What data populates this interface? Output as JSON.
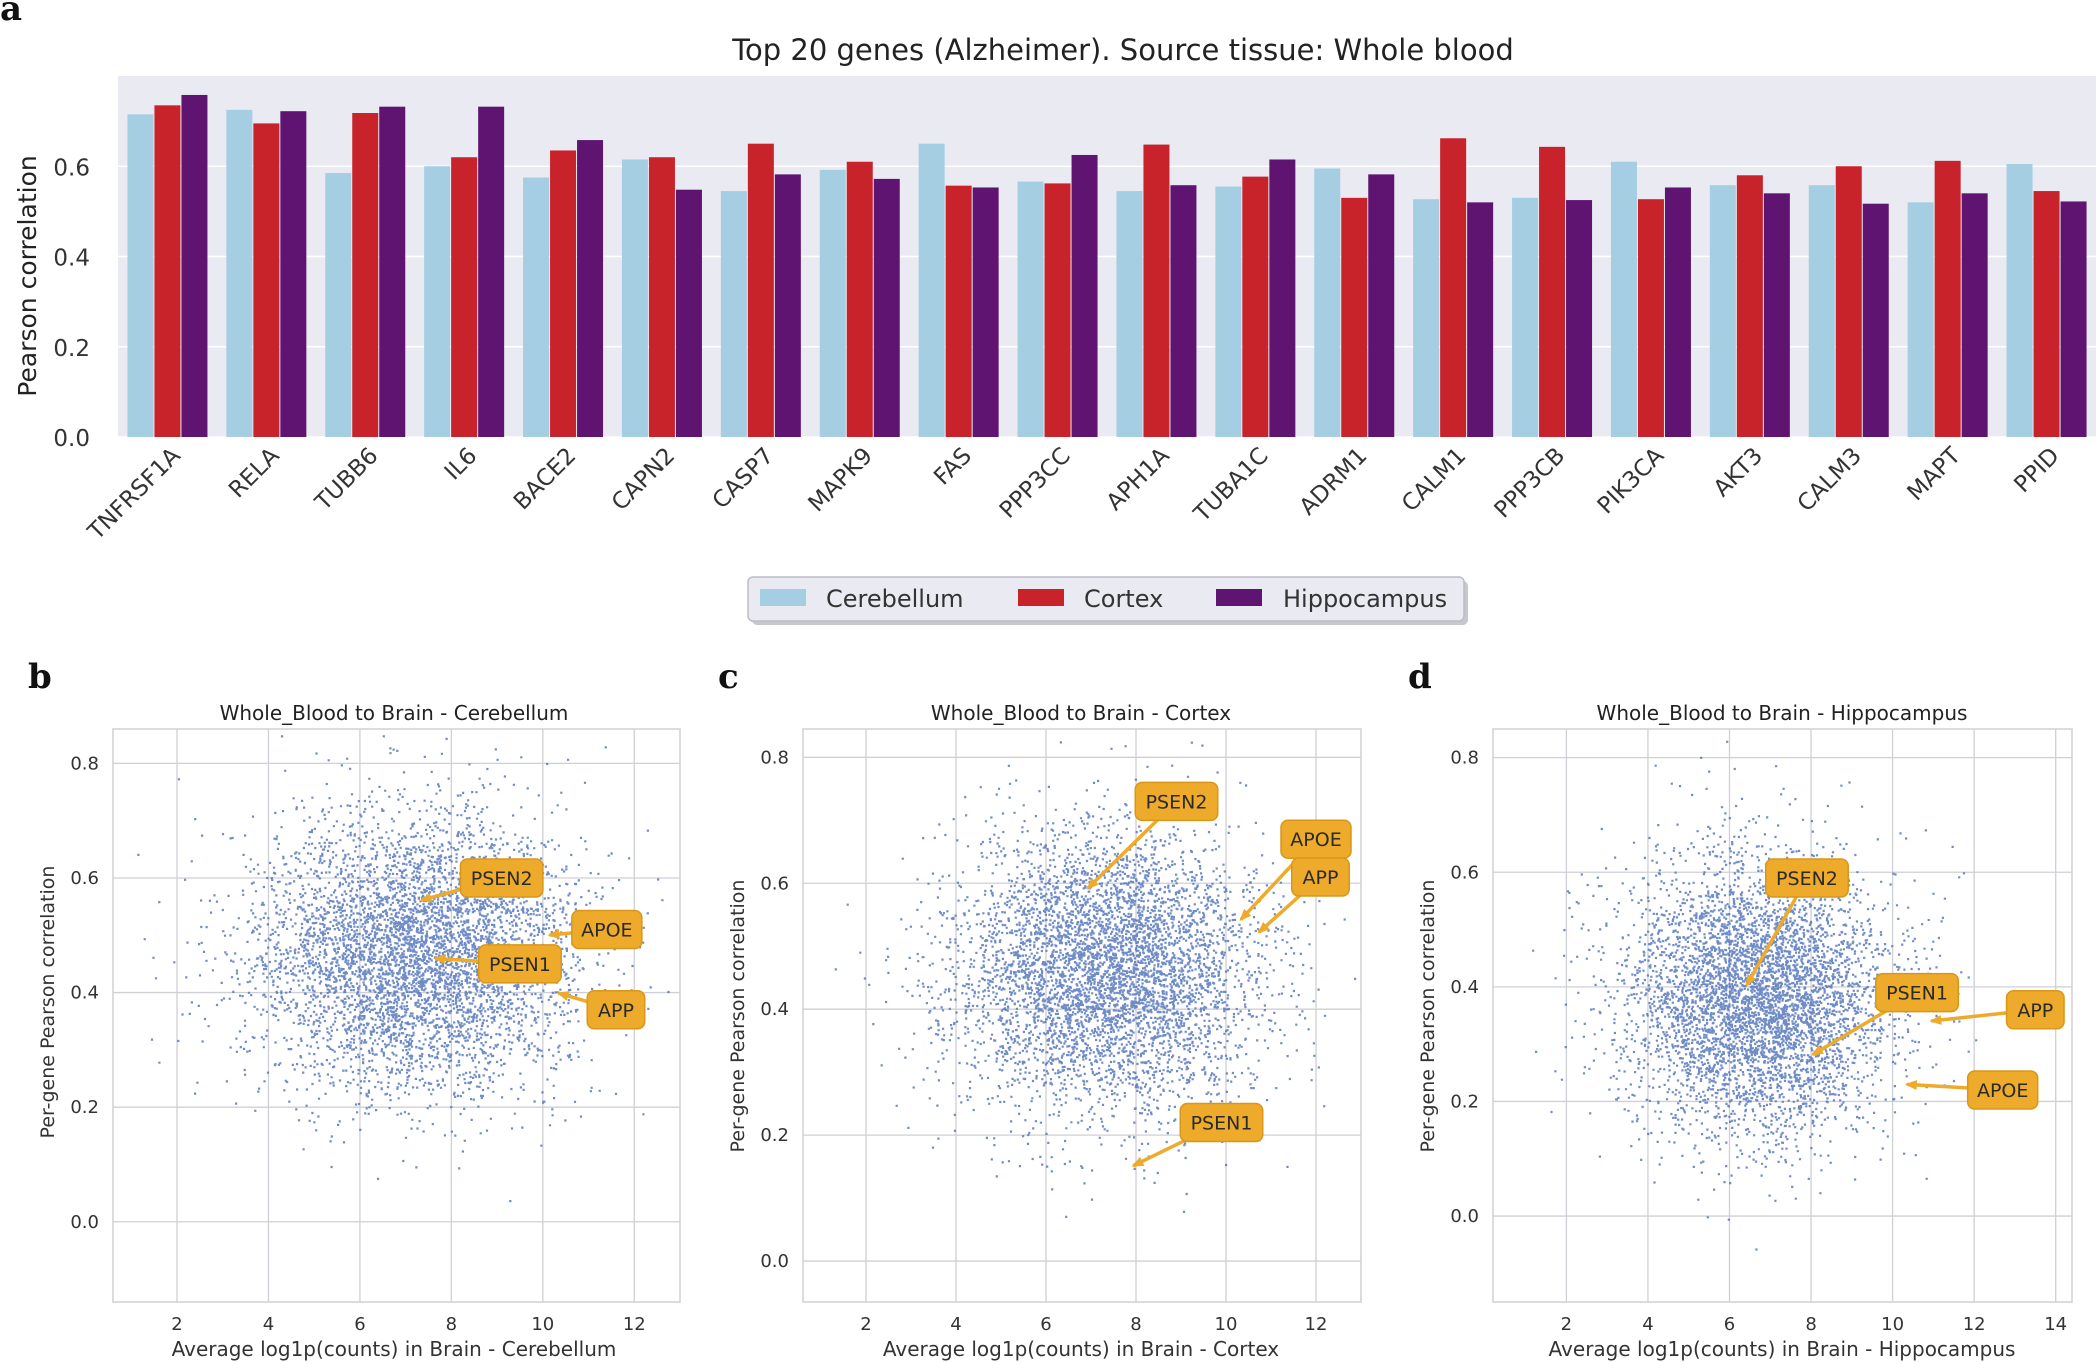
{
  "panel_letters": [
    "a",
    "b",
    "c",
    "d"
  ],
  "colors": {
    "cerebellum": "#a6cee3",
    "cortex": "#c8232a",
    "hippocampus": "#5e1470",
    "scatter_point": "#4c6fb8",
    "annotation_fill": "#eeaa2a",
    "annotation_edge": "#d9971a",
    "bar_axes_bg": "#eaeaf2",
    "grid": "#cfcfd6"
  },
  "chart_data": [
    {
      "type": "bar",
      "title": "Top 20 genes (Alzheimer). Source tissue: Whole blood",
      "xlabel": "",
      "ylabel": "Pearson correlation",
      "ylim": [
        0,
        0.8
      ],
      "yticks": [
        "0.0",
        "0.2",
        "0.4",
        "0.6"
      ],
      "grid": true,
      "legend_position": "bottom-center",
      "categories": [
        "TNFRSF1A",
        "RELA",
        "TUBB6",
        "IL6",
        "BACE2",
        "CAPN2",
        "CASP7",
        "MAPK9",
        "FAS",
        "PPP3CC",
        "APH1A",
        "TUBA1C",
        "ADRM1",
        "CALM1",
        "PPP3CB",
        "PIK3CA",
        "AKT3",
        "CALM3",
        "MAPT",
        "PPID"
      ],
      "series": [
        {
          "name": "Cerebellum",
          "values": [
            0.715,
            0.725,
            0.585,
            0.6,
            0.575,
            0.615,
            0.545,
            0.592,
            0.65,
            0.566,
            0.545,
            0.555,
            0.595,
            0.527,
            0.53,
            0.61,
            0.558,
            0.558,
            0.52,
            0.605
          ]
        },
        {
          "name": "Cortex",
          "values": [
            0.735,
            0.695,
            0.718,
            0.62,
            0.635,
            0.62,
            0.65,
            0.61,
            0.557,
            0.562,
            0.648,
            0.577,
            0.53,
            0.662,
            0.643,
            0.527,
            0.58,
            0.6,
            0.612,
            0.545
          ]
        },
        {
          "name": "Hippocampus",
          "values": [
            0.758,
            0.722,
            0.732,
            0.732,
            0.658,
            0.548,
            0.582,
            0.572,
            0.553,
            0.625,
            0.558,
            0.615,
            0.582,
            0.52,
            0.525,
            0.553,
            0.54,
            0.517,
            0.54,
            0.522
          ]
        }
      ]
    },
    {
      "type": "scatter",
      "title": "Whole_Blood to Brain - Cerebellum",
      "xlabel": "Average log1p(counts) in Brain - Cerebellum",
      "ylabel": "Per-gene Pearson correlation",
      "xlim": [
        0.6,
        13.0
      ],
      "ylim": [
        -0.14,
        0.86
      ],
      "xticks": [
        2,
        4,
        6,
        8,
        10,
        12
      ],
      "yticks": [
        0.0,
        0.2,
        0.4,
        0.6,
        0.8
      ],
      "grid": true,
      "point_cloud": {
        "n": 5200,
        "center_x": 7.2,
        "center_y": 0.47,
        "sd_x": 1.75,
        "sd_y": 0.12,
        "seed": 11
      },
      "annotations": [
        {
          "label": "PSEN2",
          "point": [
            7.3,
            0.56
          ],
          "label_at": [
            9.1,
            0.6
          ]
        },
        {
          "label": "APOE",
          "point": [
            10.1,
            0.5
          ],
          "label_at": [
            11.4,
            0.51
          ]
        },
        {
          "label": "PSEN1",
          "point": [
            7.6,
            0.46
          ],
          "label_at": [
            9.5,
            0.45
          ]
        },
        {
          "label": "APP",
          "point": [
            10.3,
            0.4
          ],
          "label_at": [
            11.6,
            0.37
          ]
        }
      ]
    },
    {
      "type": "scatter",
      "title": "Whole_Blood to Brain - Cortex",
      "xlabel": "Average log1p(counts) in Brain - Cortex",
      "ylabel": "Per-gene Pearson correlation",
      "xlim": [
        0.6,
        13.0
      ],
      "ylim": [
        -0.065,
        0.845
      ],
      "xticks": [
        2,
        4,
        6,
        8,
        10,
        12
      ],
      "yticks": [
        0.0,
        0.2,
        0.4,
        0.6,
        0.8
      ],
      "grid": true,
      "point_cloud": {
        "n": 5200,
        "center_x": 7.3,
        "center_y": 0.46,
        "sd_x": 1.7,
        "sd_y": 0.11,
        "seed": 23
      },
      "annotations": [
        {
          "label": "PSEN2",
          "point": [
            6.9,
            0.59
          ],
          "label_at": [
            8.9,
            0.73
          ]
        },
        {
          "label": "APOE",
          "point": [
            10.3,
            0.54
          ],
          "label_at": [
            12.0,
            0.67
          ]
        },
        {
          "label": "APP",
          "point": [
            10.7,
            0.52
          ],
          "label_at": [
            12.1,
            0.61
          ]
        },
        {
          "label": "PSEN1",
          "point": [
            7.9,
            0.15
          ],
          "label_at": [
            9.9,
            0.22
          ]
        }
      ]
    },
    {
      "type": "scatter",
      "title": "Whole_Blood to Brain - Hippocampus",
      "xlabel": "Average log1p(counts) in Brain - Hippocampus",
      "ylabel": "Per-gene Pearson correlation",
      "xlim": [
        0.2,
        14.4
      ],
      "ylim": [
        -0.15,
        0.85
      ],
      "xticks": [
        2,
        4,
        6,
        8,
        10,
        12,
        14
      ],
      "yticks": [
        0.0,
        0.2,
        0.4,
        0.6,
        0.8
      ],
      "grid": true,
      "point_cloud": {
        "n": 5200,
        "center_x": 6.7,
        "center_y": 0.38,
        "sd_x": 1.65,
        "sd_y": 0.12,
        "seed": 37
      },
      "annotations": [
        {
          "label": "PSEN2",
          "point": [
            6.4,
            0.4
          ],
          "label_at": [
            7.9,
            0.59
          ]
        },
        {
          "label": "PSEN1",
          "point": [
            8.0,
            0.28
          ],
          "label_at": [
            10.6,
            0.39
          ]
        },
        {
          "label": "APP",
          "point": [
            10.9,
            0.34
          ],
          "label_at": [
            13.5,
            0.36
          ]
        },
        {
          "label": "APOE",
          "point": [
            10.3,
            0.23
          ],
          "label_at": [
            12.7,
            0.22
          ]
        }
      ]
    }
  ]
}
